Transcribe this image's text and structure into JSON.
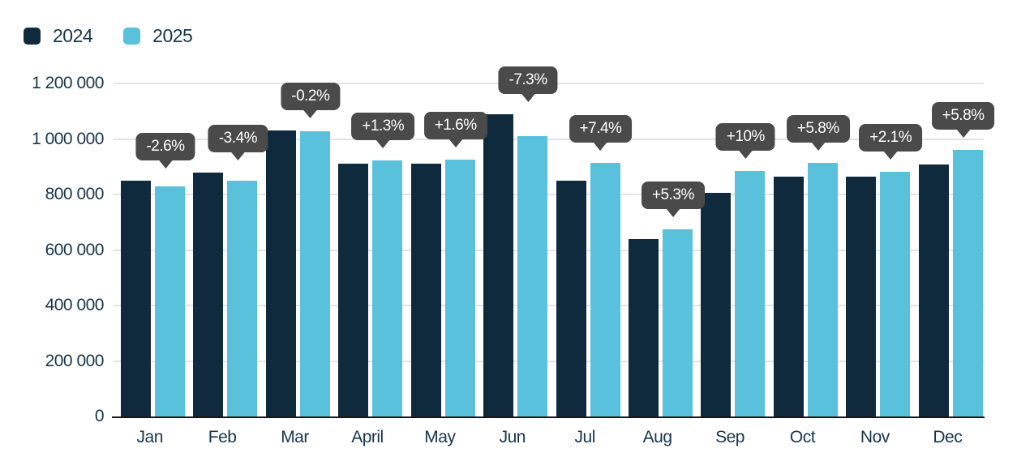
{
  "legend": {
    "items": [
      {
        "label": "2024",
        "color": "#102a3d"
      },
      {
        "label": "2025",
        "color": "#5ac1dc"
      }
    ]
  },
  "chart_data": {
    "type": "bar",
    "categories": [
      "Jan",
      "Feb",
      "Mar",
      "April",
      "May",
      "Jun",
      "Jul",
      "Aug",
      "Sep",
      "Oct",
      "Nov",
      "Dec"
    ],
    "series": [
      {
        "name": "2024",
        "color": "#102a3d",
        "values": [
          850000,
          880000,
          1030000,
          910000,
          910000,
          1090000,
          850000,
          640000,
          805000,
          865000,
          865000,
          908000
        ]
      },
      {
        "name": "2025",
        "color": "#5ac1dc",
        "values": [
          828000,
          850000,
          1028000,
          922000,
          925000,
          1010000,
          913000,
          674000,
          886000,
          915000,
          883000,
          961000
        ]
      }
    ],
    "change_labels": [
      "-2.6%",
      "-3.4%",
      "-0.2%",
      "+1.3%",
      "+1.6%",
      "-7.3%",
      "+7.4%",
      "+5.3%",
      "+10%",
      "+5.8%",
      "+2.1%",
      "+5.8%"
    ],
    "y_ticks": [
      {
        "value": 1200000,
        "label": "1 200 000"
      },
      {
        "value": 1000000,
        "label": "1 000 000"
      },
      {
        "value": 800000,
        "label": "800 000"
      },
      {
        "value": 600000,
        "label": "600 000"
      },
      {
        "value": 400000,
        "label": "400 000"
      },
      {
        "value": 200000,
        "label": "200 000"
      },
      {
        "value": 0,
        "label": "0"
      }
    ],
    "ylim": [
      0,
      1200000
    ],
    "grid": true,
    "legend_position": "top-left",
    "colors": {
      "grid": "#e3e3e3",
      "axis_line": "#161616",
      "text": "#17364a",
      "tooltip_bg": "#4a4a4a",
      "tooltip_text": "#ffffff"
    }
  }
}
